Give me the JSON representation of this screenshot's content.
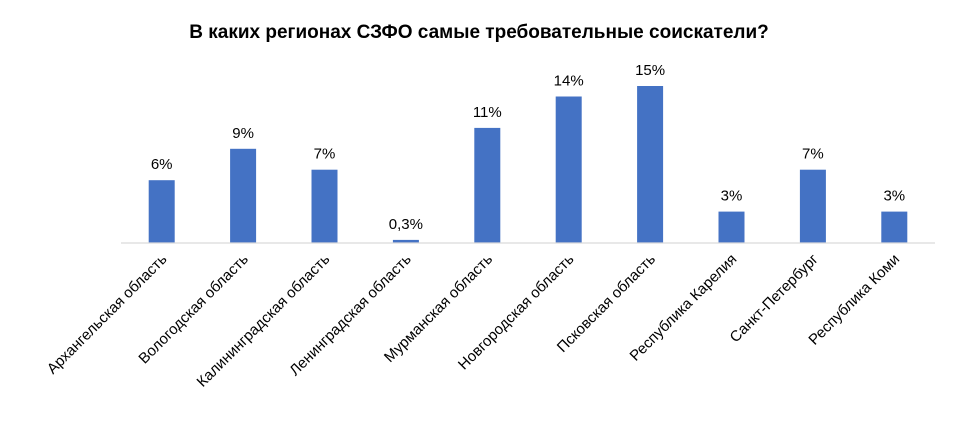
{
  "chart_data": {
    "type": "bar",
    "title": "В каких регионах СЗФО самые требовательные соискатели?",
    "xlabel": "",
    "ylabel": "",
    "categories": [
      "Архангельская область",
      "Вологодская область",
      "Калининградская  область",
      "Ленинградская область",
      "Мурманская область",
      "Новгородская область",
      "Псковская область",
      "Республика Карелия",
      "Санкт-Петербург",
      "Республика Коми"
    ],
    "values": [
      6,
      9,
      7,
      0.3,
      11,
      14,
      15,
      3,
      7,
      3
    ],
    "value_labels": [
      "6%",
      "9%",
      "7%",
      "0,3%",
      "11%",
      "14%",
      "15%",
      "3%",
      "7%",
      "3%"
    ],
    "ylim": [
      0,
      16
    ],
    "grid": false,
    "legend": "none",
    "bar_color": "#4472C4",
    "axis_color": "#D9D9D9"
  }
}
